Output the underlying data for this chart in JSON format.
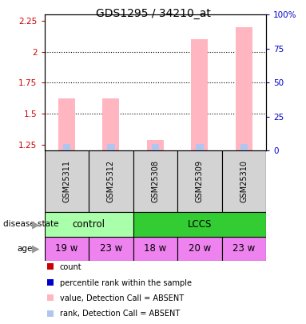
{
  "title": "GDS1295 / 34210_at",
  "samples": [
    "GSM25311",
    "GSM25312",
    "GSM25308",
    "GSM25309",
    "GSM25310"
  ],
  "ylim_left": [
    1.2,
    2.3
  ],
  "bar_pink_values": [
    1.62,
    1.62,
    1.285,
    2.1,
    2.2
  ],
  "bar_blue_values": [
    1.253,
    1.253,
    1.253,
    1.255,
    1.255
  ],
  "ages": [
    "19 w",
    "23 w",
    "18 w",
    "20 w",
    "23 w"
  ],
  "age_color": "#ee82ee",
  "sample_bg_color": "#d3d3d3",
  "bar_pink_color": "#ffb6c1",
  "bar_blue_color": "#aec6f0",
  "left_axis_color": "#cc0000",
  "right_axis_color": "#0000cc",
  "yticks_left": [
    1.25,
    1.5,
    1.75,
    2.0,
    2.25
  ],
  "ytick_labels_left": [
    "1.25",
    "1.5",
    "1.75",
    "2",
    "2.25"
  ],
  "yticks_right": [
    0,
    25,
    50,
    75,
    100
  ],
  "ytick_labels_right": [
    "0",
    "25",
    "50",
    "75",
    "100%"
  ],
  "disease_groups": [
    {
      "label": "control",
      "start": 0,
      "end": 2,
      "color": "#aaffaa"
    },
    {
      "label": "LCCS",
      "start": 2,
      "end": 5,
      "color": "#33cc33"
    }
  ],
  "legend_items": [
    {
      "color": "#cc0000",
      "label": "count"
    },
    {
      "color": "#0000cc",
      "label": "percentile rank within the sample"
    },
    {
      "color": "#ffb6c1",
      "label": "value, Detection Call = ABSENT"
    },
    {
      "color": "#aec6f0",
      "label": "rank, Detection Call = ABSENT"
    }
  ]
}
